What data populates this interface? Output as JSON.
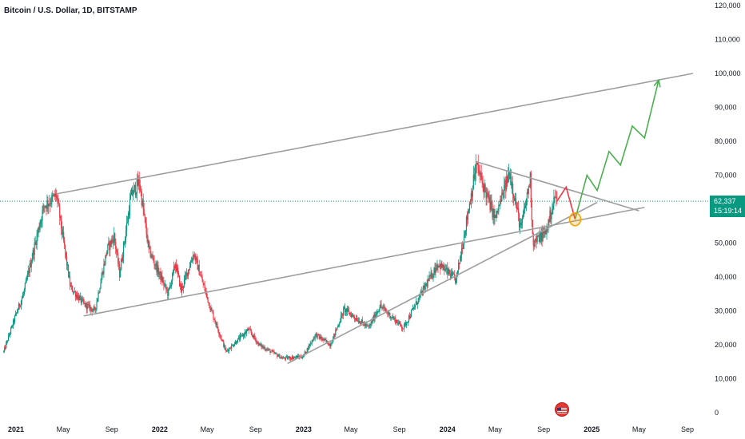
{
  "header": {
    "title": "Bitcoin / U.S. Dollar, 1D, BITSTAMP"
  },
  "price_tag": {
    "price": "62,337",
    "countdown": "15:19:14",
    "color": "#089981"
  },
  "icons": {
    "event_flag": "us-flag-icon"
  },
  "colors": {
    "up": "#089981",
    "down": "#f23645",
    "trendline": "#9e9e9e",
    "projection_down": "#f23645",
    "projection_up": "#4caf50",
    "highlight": "#f7a400",
    "price_line": "#089981"
  },
  "chart_data": {
    "type": "candlestick",
    "symbol": "Bitcoin / U.S. Dollar",
    "timeframe": "1D",
    "exchange": "BITSTAMP",
    "ylim": [
      0,
      120000
    ],
    "y_ticks": [
      "120,000",
      "110,000",
      "100,000",
      "90,000",
      "80,000",
      "70,000",
      "60,000",
      "50,000",
      "40,000",
      "30,000",
      "20,000",
      "10,000",
      "0"
    ],
    "y_tick_values": [
      120000,
      110000,
      100000,
      90000,
      80000,
      70000,
      60000,
      50000,
      40000,
      30000,
      20000,
      10000,
      0
    ],
    "x_ticks": [
      "2021",
      "May",
      "Sep",
      "2022",
      "May",
      "Sep",
      "2023",
      "May",
      "Sep",
      "2024",
      "May",
      "Sep",
      "2025",
      "May",
      "Sep"
    ],
    "x_tick_dates": [
      "2021-01-01",
      "2021-05-01",
      "2021-09-01",
      "2022-01-01",
      "2022-05-01",
      "2022-09-01",
      "2023-01-01",
      "2023-05-01",
      "2023-09-01",
      "2024-01-01",
      "2024-05-01",
      "2024-09-01",
      "2025-01-01",
      "2025-05-01",
      "2025-09-01"
    ],
    "last_price": 62337,
    "price_path": [
      [
        "2020-12-01",
        18000
      ],
      [
        "2021-01-01",
        29000
      ],
      [
        "2021-01-20",
        35000
      ],
      [
        "2021-02-15",
        48000
      ],
      [
        "2021-03-13",
        61000
      ],
      [
        "2021-04-14",
        64000
      ],
      [
        "2021-05-19",
        37000
      ],
      [
        "2021-06-22",
        32000
      ],
      [
        "2021-07-20",
        30000
      ],
      [
        "2021-08-20",
        48000
      ],
      [
        "2021-09-07",
        52000
      ],
      [
        "2021-09-21",
        41000
      ],
      [
        "2021-10-20",
        64000
      ],
      [
        "2021-11-10",
        68000
      ],
      [
        "2021-12-04",
        48000
      ],
      [
        "2022-01-22",
        35000
      ],
      [
        "2022-02-10",
        44000
      ],
      [
        "2022-02-24",
        36000
      ],
      [
        "2022-03-28",
        47000
      ],
      [
        "2022-05-09",
        31000
      ],
      [
        "2022-06-18",
        18000
      ],
      [
        "2022-08-14",
        24500
      ],
      [
        "2022-09-10",
        20000
      ],
      [
        "2022-11-09",
        16000
      ],
      [
        "2022-12-30",
        16500
      ],
      [
        "2023-01-31",
        23000
      ],
      [
        "2023-03-10",
        20000
      ],
      [
        "2023-04-14",
        30500
      ],
      [
        "2023-06-15",
        25000
      ],
      [
        "2023-07-14",
        31500
      ],
      [
        "2023-09-11",
        25000
      ],
      [
        "2023-10-24",
        34500
      ],
      [
        "2023-12-08",
        44000
      ],
      [
        "2024-01-23",
        39000
      ],
      [
        "2024-03-14",
        73000
      ],
      [
        "2024-05-01",
        57000
      ],
      [
        "2024-06-07",
        71000
      ],
      [
        "2024-07-05",
        54000
      ],
      [
        "2024-07-29",
        69000
      ],
      [
        "2024-08-05",
        50000
      ],
      [
        "2024-09-06",
        53000
      ],
      [
        "2024-10-01",
        64000
      ],
      [
        "2024-10-05",
        62337
      ]
    ],
    "trendlines": [
      {
        "name": "upper-channel",
        "from": [
          "2021-04-14",
          64500
        ],
        "to": [
          "2025-09-15",
          100000
        ]
      },
      {
        "name": "lower-channel",
        "from": [
          "2021-06-22",
          28500
        ],
        "to": [
          "2025-05-15",
          60500
        ]
      },
      {
        "name": "rising-support",
        "from": [
          "2022-11-21",
          14500
        ],
        "to": [
          "2025-01-15",
          62000
        ]
      },
      {
        "name": "triangle-top",
        "from": [
          "2024-03-14",
          74000
        ],
        "to": [
          "2025-05-01",
          59500
        ]
      }
    ],
    "projection": {
      "down": [
        [
          "2024-10-05",
          62337
        ],
        [
          "2024-10-28",
          66500
        ],
        [
          "2024-11-20",
          57000
        ]
      ],
      "up": [
        [
          "2024-11-20",
          57000
        ],
        [
          "2024-12-20",
          70000
        ],
        [
          "2025-01-15",
          65500
        ],
        [
          "2025-02-14",
          77000
        ],
        [
          "2025-03-15",
          73000
        ],
        [
          "2025-04-14",
          84500
        ],
        [
          "2025-05-15",
          81000
        ],
        [
          "2025-06-20",
          98000
        ]
      ]
    },
    "highlight_circle": [
      "2024-11-20",
      57000
    ]
  }
}
